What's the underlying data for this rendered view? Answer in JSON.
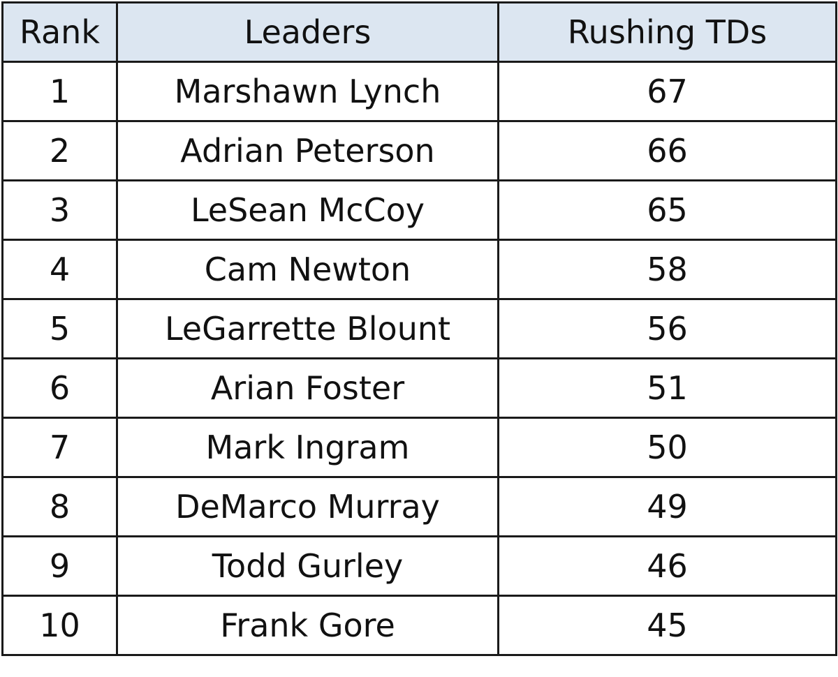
{
  "table": {
    "headers": {
      "rank": "Rank",
      "leaders": "Leaders",
      "rushing_tds": "Rushing TDs"
    },
    "rows": [
      {
        "rank": "1",
        "name": "Marshawn Lynch",
        "tds": "67"
      },
      {
        "rank": "2",
        "name": "Adrian Peterson",
        "tds": "66"
      },
      {
        "rank": "3",
        "name": "LeSean McCoy",
        "tds": "65"
      },
      {
        "rank": "4",
        "name": "Cam Newton",
        "tds": "58"
      },
      {
        "rank": "5",
        "name": "LeGarrette Blount",
        "tds": "56"
      },
      {
        "rank": "6",
        "name": "Arian Foster",
        "tds": "51"
      },
      {
        "rank": "7",
        "name": "Mark Ingram",
        "tds": "50"
      },
      {
        "rank": "8",
        "name": "DeMarco Murray",
        "tds": "49"
      },
      {
        "rank": "9",
        "name": "Todd Gurley",
        "tds": "46"
      },
      {
        "rank": "10",
        "name": "Frank Gore",
        "tds": "45"
      }
    ]
  },
  "colors": {
    "header_background": "#dce6f1",
    "border": "#1a1a1a",
    "text": "#111111"
  }
}
